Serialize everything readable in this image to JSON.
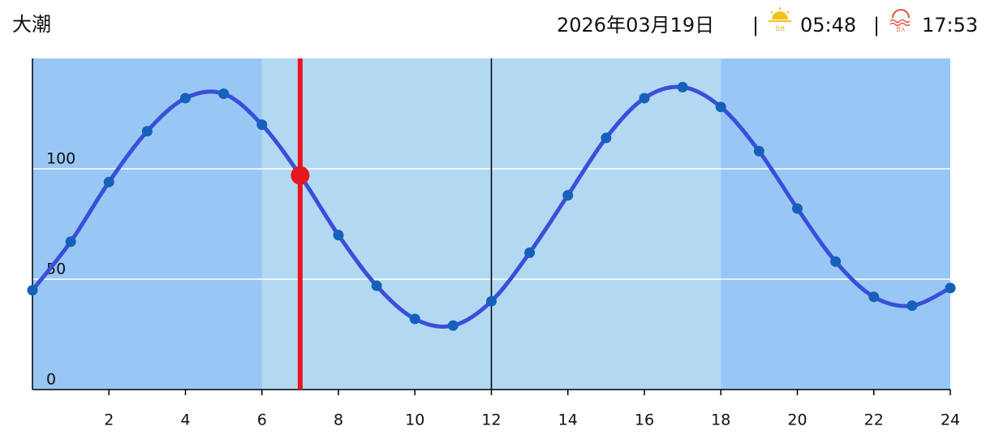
{
  "header": {
    "tide": "大潮",
    "date": "2026年03月19日",
    "sep1": "|",
    "sunrise_icon_label": "日出",
    "sunrise": "05:48",
    "sep2": "|",
    "sunset_icon_label": "日入",
    "sunset": "17:53"
  },
  "chart_data": {
    "type": "line",
    "x": [
      0,
      1,
      2,
      3,
      4,
      5,
      6,
      7,
      8,
      9,
      10,
      11,
      12,
      13,
      14,
      15,
      16,
      17,
      18,
      19,
      20,
      21,
      22,
      23,
      24
    ],
    "series": [
      {
        "color": "#3a4fd9",
        "marker_color": "#1560b8",
        "values": [
          45,
          67,
          94,
          117,
          132,
          134,
          120,
          97,
          70,
          47,
          32,
          29,
          40,
          62,
          88,
          114,
          132,
          137,
          128,
          108,
          82,
          58,
          42,
          38,
          46
        ]
      }
    ],
    "current": {
      "x": 7,
      "value": 97,
      "color": "#e8161e"
    },
    "daylight": [
      6,
      18
    ],
    "noon_line": 12,
    "xlim": [
      0,
      24
    ],
    "xticks": [
      2,
      4,
      6,
      8,
      10,
      12,
      14,
      16,
      18,
      20,
      22,
      24
    ],
    "ylim": [
      0,
      150
    ],
    "yticks": [
      0,
      50,
      100
    ],
    "grid": true,
    "night_color": "#99c7f5",
    "day_color": "#b3d9f2"
  }
}
